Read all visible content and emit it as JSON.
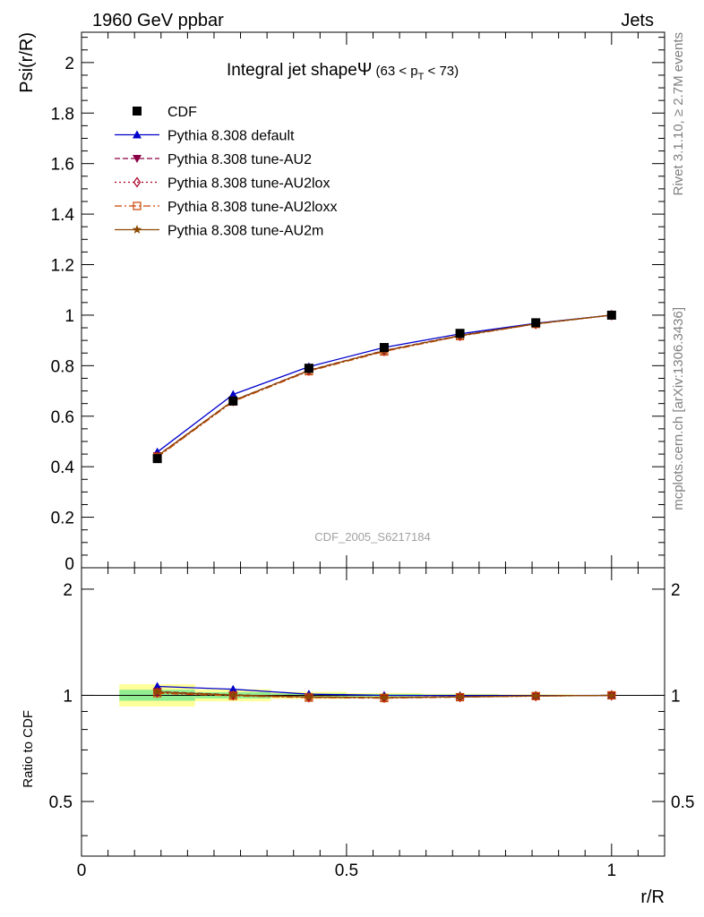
{
  "header": {
    "left": "1960 GeV ppbar",
    "right": "Jets"
  },
  "side_labels": {
    "rivet": "Rivet 3.1.10, ≥ 2.7M events",
    "mcplots": "mcplots.cern.ch [arXiv:1306.3436]"
  },
  "chart_data": [
    {
      "type": "line",
      "title": "Integral jet shape",
      "title_symbol": "Ψ",
      "title_range": "(63 < p",
      "title_range_sub": "T",
      "title_range_end": " < 73)",
      "watermark": "CDF_2005_S6217184",
      "ylabel": "Psi(r/R)",
      "xlim": [
        0,
        1.1
      ],
      "ylim": [
        0,
        2.12
      ],
      "yticks": [
        0.2,
        0.4,
        0.6,
        0.8,
        1,
        1.2,
        1.4,
        1.6,
        1.8,
        2
      ],
      "ytick_labels": [
        "0.2",
        "0.4",
        "0.6",
        "0.8",
        "1",
        "1.2",
        "1.4",
        "1.6",
        "1.8",
        "2"
      ],
      "ytick_zero_label": "0",
      "x": [
        0.143,
        0.286,
        0.429,
        0.571,
        0.714,
        0.857,
        1.0
      ],
      "series": [
        {
          "name": "CDF",
          "marker": "square",
          "color": "#000000",
          "dash": "none",
          "values": [
            0.432,
            0.66,
            0.79,
            0.872,
            0.928,
            0.97,
            1.0
          ]
        },
        {
          "name": "Pythia 8.308 default",
          "marker": "triangle-up",
          "color": "#0000cc",
          "dash": "none",
          "values": [
            0.458,
            0.686,
            0.796,
            0.872,
            0.926,
            0.968,
            1.0
          ]
        },
        {
          "name": "Pythia 8.308 tune-AU2",
          "marker": "triangle-down",
          "color": "#8b0045",
          "dash": "6,3",
          "values": [
            0.443,
            0.662,
            0.782,
            0.86,
            0.92,
            0.966,
            1.0
          ]
        },
        {
          "name": "Pythia 8.308 tune-AU2lox",
          "marker": "diamond-open",
          "color": "#aa0022",
          "dash": "2,3",
          "values": [
            0.44,
            0.66,
            0.78,
            0.858,
            0.918,
            0.965,
            1.0
          ]
        },
        {
          "name": "Pythia 8.308 tune-AU2loxx",
          "marker": "square-open",
          "color": "#cc4400",
          "dash": "8,3,2,3",
          "values": [
            0.438,
            0.658,
            0.778,
            0.856,
            0.917,
            0.965,
            1.0
          ]
        },
        {
          "name": "Pythia 8.308 tune-AU2m",
          "marker": "star",
          "color": "#8b4a00",
          "dash": "none",
          "values": [
            0.442,
            0.661,
            0.781,
            0.859,
            0.919,
            0.966,
            1.0
          ]
        }
      ]
    },
    {
      "type": "line",
      "ylabel": "Ratio to CDF",
      "xlabel": "r/R",
      "xlim": [
        0,
        1.1
      ],
      "ylim": [
        0.35,
        2.3
      ],
      "yscale": "log",
      "yticks": [
        0.5,
        1,
        2
      ],
      "ytick_labels": [
        "0.5",
        "1",
        "2"
      ],
      "xticks": [
        0,
        0.5,
        1
      ],
      "xtick_labels": [
        "0",
        "0.5",
        "1"
      ],
      "bands": {
        "x_edges": [
          [
            0.0714,
            0.2143
          ],
          [
            0.2143,
            0.3571
          ],
          [
            0.3571,
            0.5
          ],
          [
            0.5,
            0.6429
          ],
          [
            0.6429,
            0.7857
          ],
          [
            0.7857,
            0.9286
          ],
          [
            0.9286,
            1.0714
          ]
        ],
        "green": [
          [
            0.965,
            1.037
          ],
          [
            0.98,
            1.02
          ],
          [
            0.988,
            1.012
          ],
          [
            0.992,
            1.008
          ],
          [
            0.995,
            1.005
          ],
          [
            0.997,
            1.003
          ],
          [
            0.999,
            1.001
          ]
        ],
        "yellow": [
          [
            0.93,
            1.075
          ],
          [
            0.962,
            1.04
          ],
          [
            0.977,
            1.023
          ],
          [
            0.985,
            1.015
          ],
          [
            0.99,
            1.01
          ],
          [
            0.994,
            1.006
          ],
          [
            0.998,
            1.002
          ]
        ],
        "green_color": "#90ee90",
        "yellow_color": "#ffff99"
      },
      "series": [
        {
          "name": "Pythia 8.308 default",
          "marker": "triangle-up",
          "color": "#0000cc",
          "dash": "none",
          "values": [
            1.06,
            1.04,
            1.008,
            1.0,
            0.998,
            0.998,
            1.0
          ]
        },
        {
          "name": "Pythia 8.308 tune-AU2",
          "marker": "triangle-down",
          "color": "#8b0045",
          "dash": "6,3",
          "values": [
            1.025,
            1.003,
            0.99,
            0.986,
            0.991,
            0.996,
            1.0
          ]
        },
        {
          "name": "Pythia 8.308 tune-AU2lox",
          "marker": "diamond-open",
          "color": "#aa0022",
          "dash": "2,3",
          "values": [
            1.018,
            1.0,
            0.987,
            0.984,
            0.989,
            0.995,
            1.0
          ]
        },
        {
          "name": "Pythia 8.308 tune-AU2loxx",
          "marker": "square-open",
          "color": "#cc4400",
          "dash": "8,3,2,3",
          "values": [
            1.014,
            0.997,
            0.985,
            0.982,
            0.988,
            0.995,
            1.0
          ]
        },
        {
          "name": "Pythia 8.308 tune-AU2m",
          "marker": "star",
          "color": "#8b4a00",
          "dash": "none",
          "values": [
            1.023,
            1.002,
            0.989,
            0.985,
            0.99,
            0.996,
            1.0
          ]
        }
      ]
    }
  ]
}
